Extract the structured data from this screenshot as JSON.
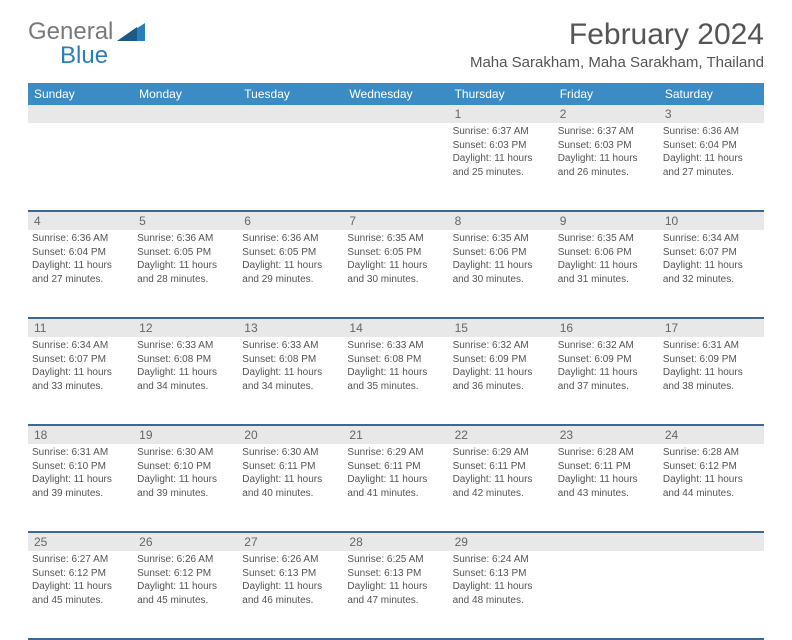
{
  "logo": {
    "general": "General",
    "blue": "Blue"
  },
  "title": "February 2024",
  "location": "Maha Sarakham, Maha Sarakham, Thailand",
  "day_headers": [
    "Sunday",
    "Monday",
    "Tuesday",
    "Wednesday",
    "Thursday",
    "Friday",
    "Saturday"
  ],
  "colors": {
    "header_bg": "#3b8bc4",
    "header_text": "#ffffff",
    "daynum_bg": "#e8e8e8",
    "row_border": "#3b6894",
    "text": "#555555",
    "logo_gray": "#7a7a7a",
    "logo_blue": "#2a7fba"
  },
  "fonts": {
    "title_size": 30,
    "location_size": 15,
    "dayhead_size": 12,
    "daynum_size": 12,
    "cell_size": 10
  },
  "weeks": [
    [
      {
        "n": "",
        "sr": "",
        "ss": "",
        "dl1": "",
        "dl2": ""
      },
      {
        "n": "",
        "sr": "",
        "ss": "",
        "dl1": "",
        "dl2": ""
      },
      {
        "n": "",
        "sr": "",
        "ss": "",
        "dl1": "",
        "dl2": ""
      },
      {
        "n": "",
        "sr": "",
        "ss": "",
        "dl1": "",
        "dl2": ""
      },
      {
        "n": "1",
        "sr": "Sunrise: 6:37 AM",
        "ss": "Sunset: 6:03 PM",
        "dl1": "Daylight: 11 hours",
        "dl2": "and 25 minutes."
      },
      {
        "n": "2",
        "sr": "Sunrise: 6:37 AM",
        "ss": "Sunset: 6:03 PM",
        "dl1": "Daylight: 11 hours",
        "dl2": "and 26 minutes."
      },
      {
        "n": "3",
        "sr": "Sunrise: 6:36 AM",
        "ss": "Sunset: 6:04 PM",
        "dl1": "Daylight: 11 hours",
        "dl2": "and 27 minutes."
      }
    ],
    [
      {
        "n": "4",
        "sr": "Sunrise: 6:36 AM",
        "ss": "Sunset: 6:04 PM",
        "dl1": "Daylight: 11 hours",
        "dl2": "and 27 minutes."
      },
      {
        "n": "5",
        "sr": "Sunrise: 6:36 AM",
        "ss": "Sunset: 6:05 PM",
        "dl1": "Daylight: 11 hours",
        "dl2": "and 28 minutes."
      },
      {
        "n": "6",
        "sr": "Sunrise: 6:36 AM",
        "ss": "Sunset: 6:05 PM",
        "dl1": "Daylight: 11 hours",
        "dl2": "and 29 minutes."
      },
      {
        "n": "7",
        "sr": "Sunrise: 6:35 AM",
        "ss": "Sunset: 6:05 PM",
        "dl1": "Daylight: 11 hours",
        "dl2": "and 30 minutes."
      },
      {
        "n": "8",
        "sr": "Sunrise: 6:35 AM",
        "ss": "Sunset: 6:06 PM",
        "dl1": "Daylight: 11 hours",
        "dl2": "and 30 minutes."
      },
      {
        "n": "9",
        "sr": "Sunrise: 6:35 AM",
        "ss": "Sunset: 6:06 PM",
        "dl1": "Daylight: 11 hours",
        "dl2": "and 31 minutes."
      },
      {
        "n": "10",
        "sr": "Sunrise: 6:34 AM",
        "ss": "Sunset: 6:07 PM",
        "dl1": "Daylight: 11 hours",
        "dl2": "and 32 minutes."
      }
    ],
    [
      {
        "n": "11",
        "sr": "Sunrise: 6:34 AM",
        "ss": "Sunset: 6:07 PM",
        "dl1": "Daylight: 11 hours",
        "dl2": "and 33 minutes."
      },
      {
        "n": "12",
        "sr": "Sunrise: 6:33 AM",
        "ss": "Sunset: 6:08 PM",
        "dl1": "Daylight: 11 hours",
        "dl2": "and 34 minutes."
      },
      {
        "n": "13",
        "sr": "Sunrise: 6:33 AM",
        "ss": "Sunset: 6:08 PM",
        "dl1": "Daylight: 11 hours",
        "dl2": "and 34 minutes."
      },
      {
        "n": "14",
        "sr": "Sunrise: 6:33 AM",
        "ss": "Sunset: 6:08 PM",
        "dl1": "Daylight: 11 hours",
        "dl2": "and 35 minutes."
      },
      {
        "n": "15",
        "sr": "Sunrise: 6:32 AM",
        "ss": "Sunset: 6:09 PM",
        "dl1": "Daylight: 11 hours",
        "dl2": "and 36 minutes."
      },
      {
        "n": "16",
        "sr": "Sunrise: 6:32 AM",
        "ss": "Sunset: 6:09 PM",
        "dl1": "Daylight: 11 hours",
        "dl2": "and 37 minutes."
      },
      {
        "n": "17",
        "sr": "Sunrise: 6:31 AM",
        "ss": "Sunset: 6:09 PM",
        "dl1": "Daylight: 11 hours",
        "dl2": "and 38 minutes."
      }
    ],
    [
      {
        "n": "18",
        "sr": "Sunrise: 6:31 AM",
        "ss": "Sunset: 6:10 PM",
        "dl1": "Daylight: 11 hours",
        "dl2": "and 39 minutes."
      },
      {
        "n": "19",
        "sr": "Sunrise: 6:30 AM",
        "ss": "Sunset: 6:10 PM",
        "dl1": "Daylight: 11 hours",
        "dl2": "and 39 minutes."
      },
      {
        "n": "20",
        "sr": "Sunrise: 6:30 AM",
        "ss": "Sunset: 6:11 PM",
        "dl1": "Daylight: 11 hours",
        "dl2": "and 40 minutes."
      },
      {
        "n": "21",
        "sr": "Sunrise: 6:29 AM",
        "ss": "Sunset: 6:11 PM",
        "dl1": "Daylight: 11 hours",
        "dl2": "and 41 minutes."
      },
      {
        "n": "22",
        "sr": "Sunrise: 6:29 AM",
        "ss": "Sunset: 6:11 PM",
        "dl1": "Daylight: 11 hours",
        "dl2": "and 42 minutes."
      },
      {
        "n": "23",
        "sr": "Sunrise: 6:28 AM",
        "ss": "Sunset: 6:11 PM",
        "dl1": "Daylight: 11 hours",
        "dl2": "and 43 minutes."
      },
      {
        "n": "24",
        "sr": "Sunrise: 6:28 AM",
        "ss": "Sunset: 6:12 PM",
        "dl1": "Daylight: 11 hours",
        "dl2": "and 44 minutes."
      }
    ],
    [
      {
        "n": "25",
        "sr": "Sunrise: 6:27 AM",
        "ss": "Sunset: 6:12 PM",
        "dl1": "Daylight: 11 hours",
        "dl2": "and 45 minutes."
      },
      {
        "n": "26",
        "sr": "Sunrise: 6:26 AM",
        "ss": "Sunset: 6:12 PM",
        "dl1": "Daylight: 11 hours",
        "dl2": "and 45 minutes."
      },
      {
        "n": "27",
        "sr": "Sunrise: 6:26 AM",
        "ss": "Sunset: 6:13 PM",
        "dl1": "Daylight: 11 hours",
        "dl2": "and 46 minutes."
      },
      {
        "n": "28",
        "sr": "Sunrise: 6:25 AM",
        "ss": "Sunset: 6:13 PM",
        "dl1": "Daylight: 11 hours",
        "dl2": "and 47 minutes."
      },
      {
        "n": "29",
        "sr": "Sunrise: 6:24 AM",
        "ss": "Sunset: 6:13 PM",
        "dl1": "Daylight: 11 hours",
        "dl2": "and 48 minutes."
      },
      {
        "n": "",
        "sr": "",
        "ss": "",
        "dl1": "",
        "dl2": ""
      },
      {
        "n": "",
        "sr": "",
        "ss": "",
        "dl1": "",
        "dl2": ""
      }
    ]
  ]
}
